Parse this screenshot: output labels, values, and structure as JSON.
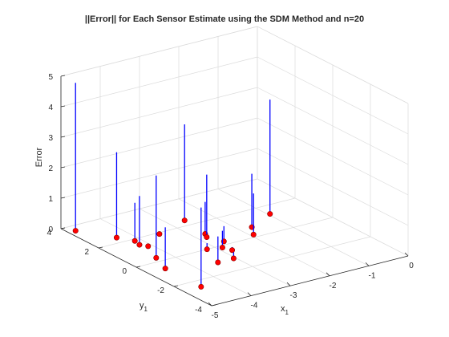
{
  "chart_data": {
    "type": "stem3",
    "title": "||Error|| for Each Sensor Estimate using the SDM Method and n=20",
    "xlabel": "x",
    "xlabel_sub": "1",
    "ylabel": "y",
    "ylabel_sub": "1",
    "zlabel": "Error",
    "xlim": [
      -5,
      0
    ],
    "ylim": [
      -4,
      4
    ],
    "zlim": [
      0,
      5
    ],
    "x_ticks": [
      "-5",
      "-4",
      "-3",
      "-2",
      "-1",
      "0"
    ],
    "y_ticks": [
      "-4",
      "-2",
      "0",
      "2",
      "4"
    ],
    "z_ticks": [
      "0",
      "1",
      "2",
      "3",
      "4",
      "5"
    ],
    "grid": true,
    "stem_color": "#0000ff",
    "marker_color": "#ff0000",
    "points": [
      {
        "x": -4.82,
        "y": 3.6,
        "z": 4.85
      },
      {
        "x": -4.35,
        "y": 2.4,
        "z": 2.8
      },
      {
        "x": -4.2,
        "y": 1.5,
        "z": 1.6
      },
      {
        "x": -4.15,
        "y": 1.85,
        "z": 1.25
      },
      {
        "x": -4.35,
        "y": 0.3,
        "z": 2.7
      },
      {
        "x": -4.55,
        "y": -0.6,
        "z": 1.35
      },
      {
        "x": -4.1,
        "y": 1.25,
        "z": 0.0
      },
      {
        "x": -4.55,
        "y": -2.5,
        "z": 2.6
      },
      {
        "x": -3.5,
        "y": 1.9,
        "z": 0.0
      },
      {
        "x": -3.2,
        "y": 0.0,
        "z": 0.2
      },
      {
        "x": -3.05,
        "y": -1.1,
        "z": 0.2
      },
      {
        "x": -3.45,
        "y": -1.1,
        "z": 0.85
      },
      {
        "x": -2.72,
        "y": 1.1,
        "z": 1.05
      },
      {
        "x": -2.8,
        "y": 0.85,
        "z": 2.05
      },
      {
        "x": -2.65,
        "y": 0.25,
        "z": 0.5
      },
      {
        "x": -2.88,
        "y": -0.15,
        "z": 0.55
      },
      {
        "x": -2.8,
        "y": -0.5,
        "z": 0.1
      },
      {
        "x": -2.62,
        "y": 2.4,
        "z": 3.15
      },
      {
        "x": -1.92,
        "y": 0.2,
        "z": 1.35
      },
      {
        "x": -1.7,
        "y": 0.75,
        "z": 1.75
      },
      {
        "x": -0.95,
        "y": 1.35,
        "z": 3.75
      }
    ]
  }
}
